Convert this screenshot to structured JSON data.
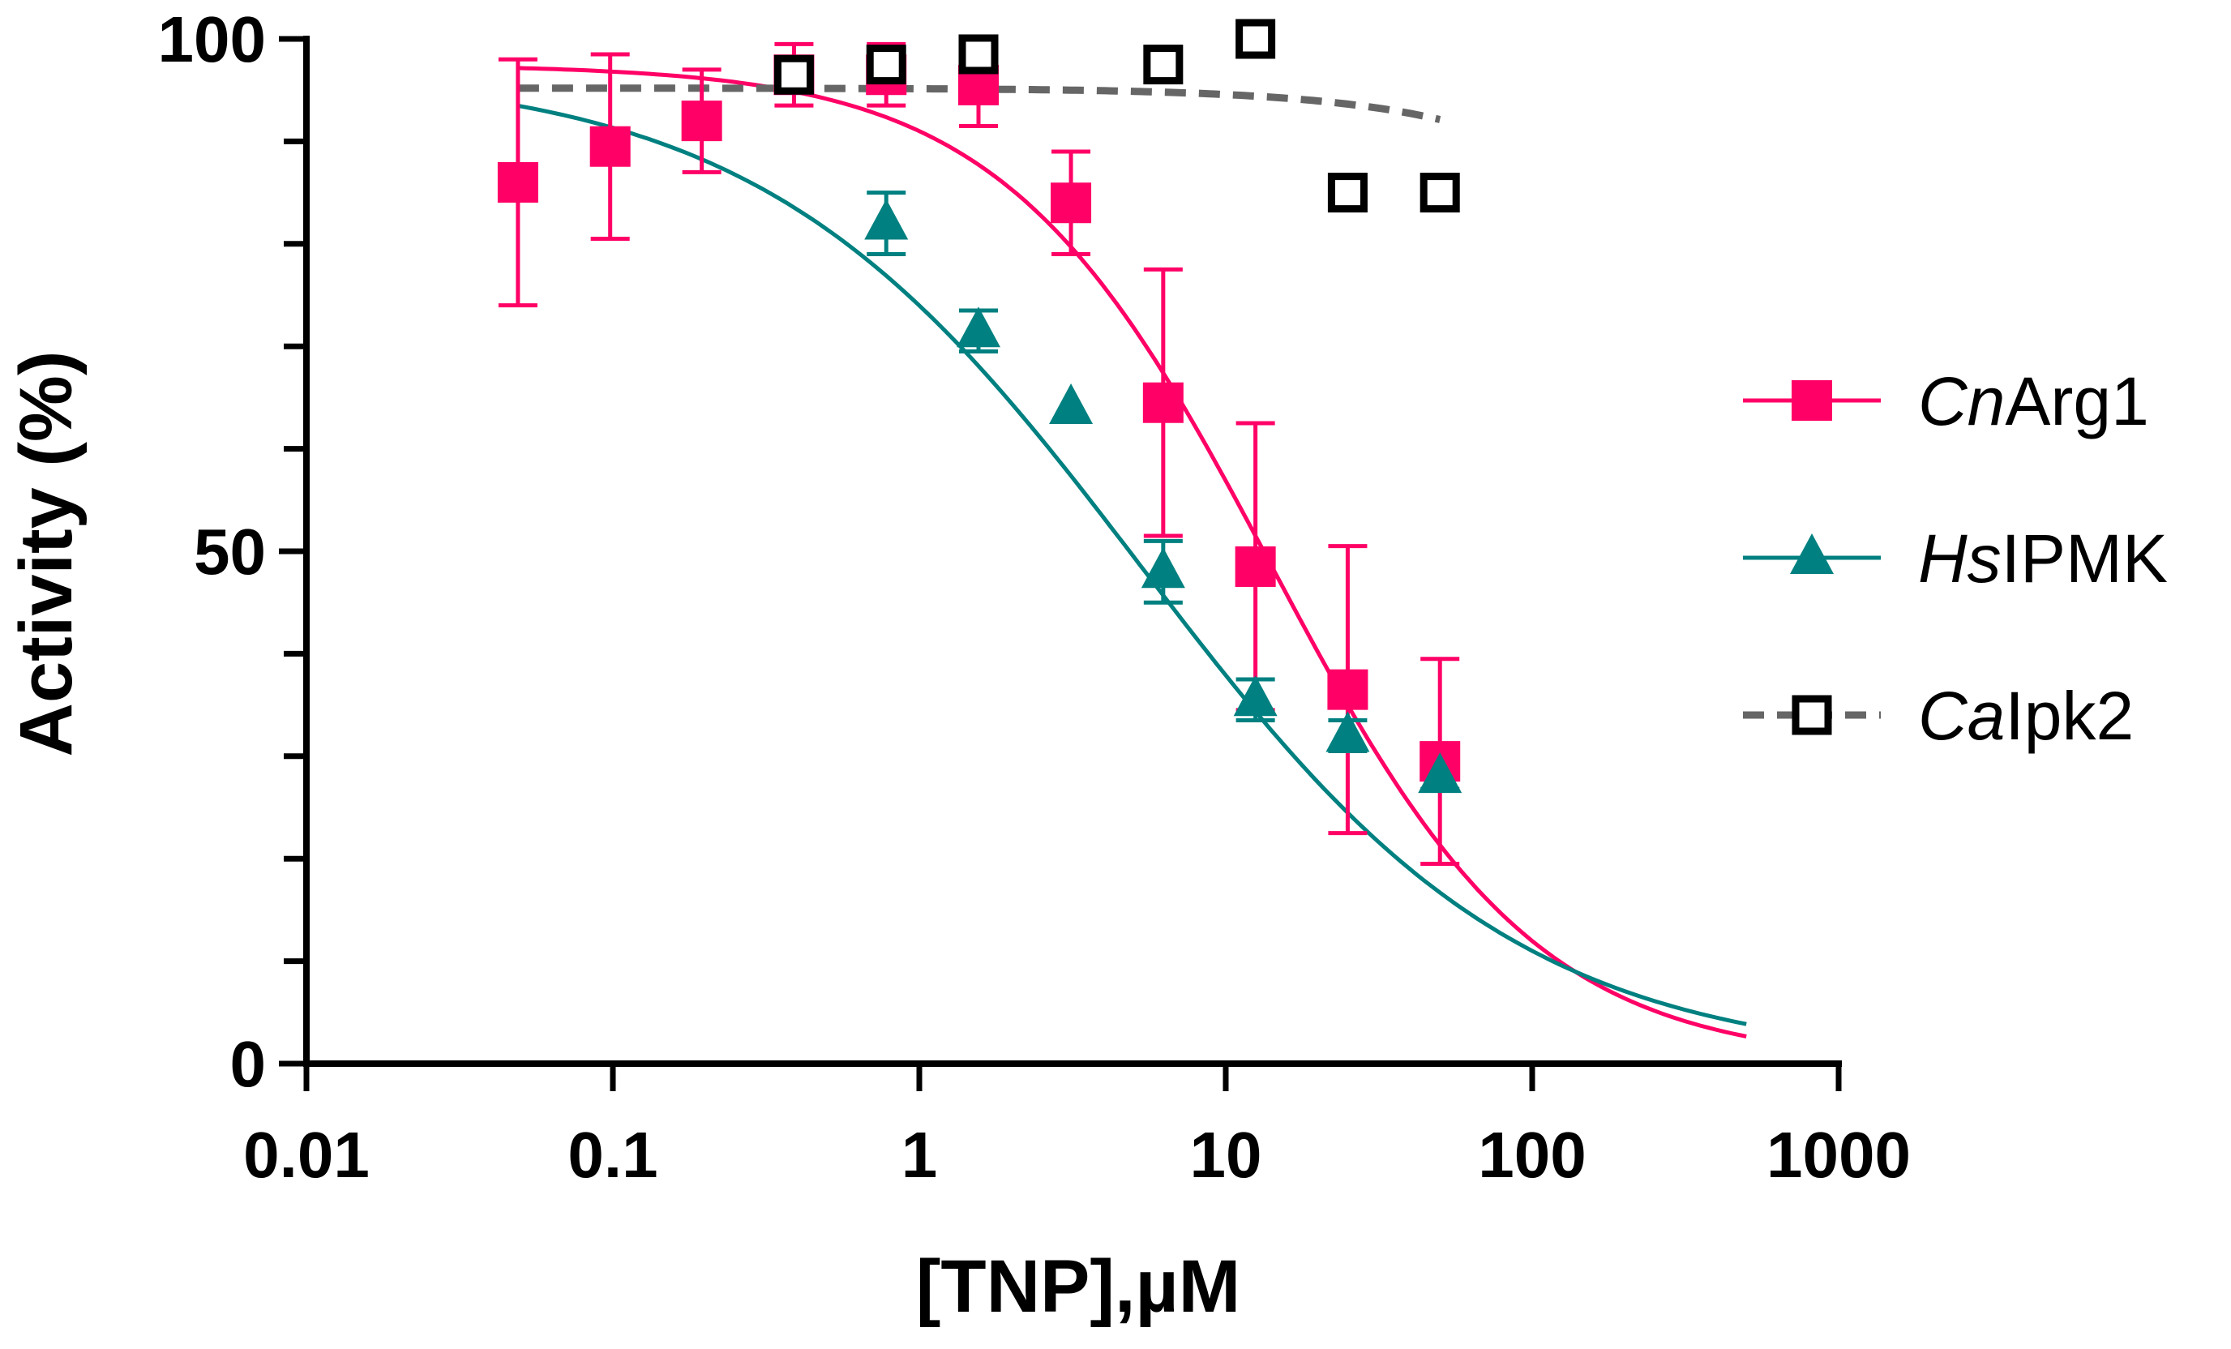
{
  "chart_data": {
    "type": "scatter",
    "title": "",
    "xlabel": "[TNP],µM",
    "ylabel": "Activity (%)",
    "xscale": "log",
    "xlim": [
      0.01,
      1000
    ],
    "ylim": [
      0,
      100
    ],
    "x_ticks": [
      0.01,
      0.1,
      1,
      10,
      100,
      1000
    ],
    "x_tick_labels": [
      "0.01",
      "0.1",
      "1",
      "10",
      "100",
      "1000"
    ],
    "y_ticks": [
      0,
      50,
      100
    ],
    "y_tick_labels": [
      "0",
      "50",
      "100"
    ],
    "y_minor_step": 10,
    "legend_position": "right",
    "series": [
      {
        "name_italic": "Cn",
        "name_rest": "Arg1",
        "color": "#ff0066",
        "marker": "square-filled",
        "points": [
          {
            "x": 0.049,
            "y": 86,
            "err": 12
          },
          {
            "x": 0.098,
            "y": 89.5,
            "err": 9
          },
          {
            "x": 0.195,
            "y": 92,
            "err": 5
          },
          {
            "x": 0.39,
            "y": 96.5,
            "err": 3
          },
          {
            "x": 0.78,
            "y": 96.5,
            "err": 3
          },
          {
            "x": 1.56,
            "y": 95.5,
            "err": 4
          },
          {
            "x": 3.125,
            "y": 84,
            "err": 5
          },
          {
            "x": 6.25,
            "y": 64.5,
            "err": 13
          },
          {
            "x": 12.5,
            "y": 48.5,
            "err": 14
          },
          {
            "x": 25,
            "y": 36.5,
            "err": 14
          },
          {
            "x": 50,
            "y": 29.5,
            "err": 10
          }
        ],
        "fit": {
          "top": 97.5,
          "bottom": 0,
          "ic50": 14,
          "hill": 1.0,
          "x_from": 0.049,
          "x_to": 500
        }
      },
      {
        "name_italic": "Hs",
        "name_rest": "IPMK",
        "color": "#008080",
        "marker": "triangle-filled",
        "points": [
          {
            "x": 0.78,
            "y": 82,
            "err": 3
          },
          {
            "x": 1.56,
            "y": 71.5,
            "err": 2
          },
          {
            "x": 3.125,
            "y": 64,
            "err": 0
          },
          {
            "x": 6.25,
            "y": 48,
            "err": 3
          },
          {
            "x": 12.5,
            "y": 35.5,
            "err": 2
          },
          {
            "x": 25,
            "y": 32,
            "err": 1.5
          },
          {
            "x": 50,
            "y": 28,
            "err": 1.2
          }
        ],
        "fit": {
          "top": 97,
          "bottom": 0,
          "ic50": 5.3,
          "hill": 0.7,
          "x_from": 0.049,
          "x_to": 500
        }
      },
      {
        "name_italic": "Ca",
        "name_rest": "Ipk2",
        "color": "#000000",
        "line_color": "#666666",
        "marker": "square-open",
        "points": [
          {
            "x": 0.39,
            "y": 96.5
          },
          {
            "x": 0.78,
            "y": 97.5
          },
          {
            "x": 1.56,
            "y": 98.5
          },
          {
            "x": 6.25,
            "y": 97.5
          },
          {
            "x": 12.5,
            "y": 100
          },
          {
            "x": 25,
            "y": 85
          },
          {
            "x": 50,
            "y": 85
          }
        ],
        "fit": {
          "top": 95.2,
          "bottom": 0,
          "ic50": 1500,
          "hill": 1.0,
          "x_from": 0.049,
          "x_to": 50
        }
      }
    ]
  }
}
